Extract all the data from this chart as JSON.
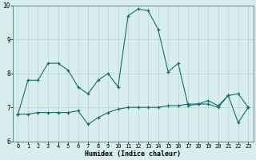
{
  "xlabel": "Humidex (Indice chaleur)",
  "x": [
    0,
    1,
    2,
    3,
    4,
    5,
    6,
    7,
    8,
    9,
    10,
    11,
    12,
    13,
    14,
    15,
    16,
    17,
    18,
    19,
    20,
    21,
    22,
    23
  ],
  "series1": [
    6.8,
    7.8,
    7.8,
    8.3,
    8.3,
    8.1,
    7.6,
    7.4,
    7.8,
    8.0,
    7.6,
    9.7,
    9.9,
    9.85,
    9.3,
    8.05,
    8.3,
    7.05,
    7.1,
    7.2,
    7.05,
    7.35,
    6.55,
    7.0
  ],
  "series2": [
    6.8,
    6.8,
    6.85,
    6.85,
    6.85,
    6.85,
    6.9,
    6.5,
    6.7,
    6.85,
    6.95,
    7.0,
    7.0,
    7.0,
    7.0,
    7.05,
    7.05,
    7.1,
    7.1,
    7.1,
    7.0,
    7.35,
    7.4,
    7.0
  ],
  "line_color": "#1a6b6b",
  "bg_color": "#d8eeee",
  "grid_color": "#b8d4d4",
  "spine_color": "#5a8a8a",
  "ylim": [
    6,
    10
  ],
  "xlim": [
    -0.5,
    23.5
  ],
  "yticks": [
    6,
    7,
    8,
    9,
    10
  ],
  "xticks": [
    0,
    1,
    2,
    3,
    4,
    5,
    6,
    7,
    8,
    9,
    10,
    11,
    12,
    13,
    14,
    15,
    16,
    17,
    18,
    19,
    20,
    21,
    22,
    23
  ],
  "tick_fontsize": 5.0,
  "xlabel_fontsize": 6.0,
  "marker_size": 3.5,
  "linewidth": 0.8
}
